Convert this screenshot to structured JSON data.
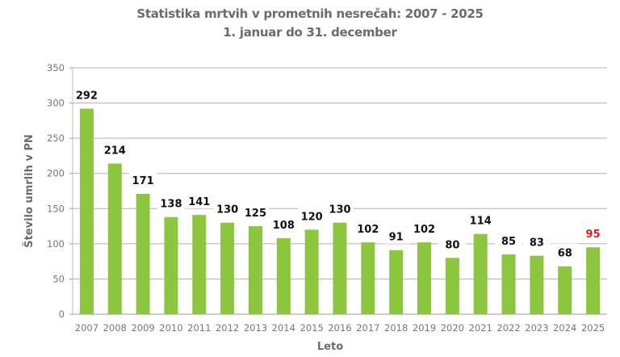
{
  "chart_data": {
    "type": "bar",
    "title": "Statistika mrtvih v prometnih nesrečah: 2007 - 2025",
    "subtitle": "1. januar do 31. december",
    "xlabel": "Leto",
    "ylabel": "Število umrlih v PN",
    "ylim": [
      0,
      350
    ],
    "yticks": [
      0,
      50,
      100,
      150,
      200,
      250,
      300,
      350
    ],
    "grid": true,
    "categories": [
      "2007",
      "2008",
      "2009",
      "2010",
      "2011",
      "2012",
      "2013",
      "2014",
      "2015",
      "2016",
      "2017",
      "2018",
      "2019",
      "2020",
      "2021",
      "2022",
      "2023",
      "2024",
      "2025"
    ],
    "values": [
      292,
      214,
      171,
      138,
      141,
      130,
      125,
      108,
      120,
      130,
      102,
      91,
      102,
      80,
      114,
      85,
      83,
      68,
      95
    ],
    "highlight": {
      "category": "2025",
      "label_color": "#e02020"
    },
    "colors": {
      "bar": "#8cc63f",
      "grid": "#b0b0b0",
      "label": "#111111"
    }
  }
}
